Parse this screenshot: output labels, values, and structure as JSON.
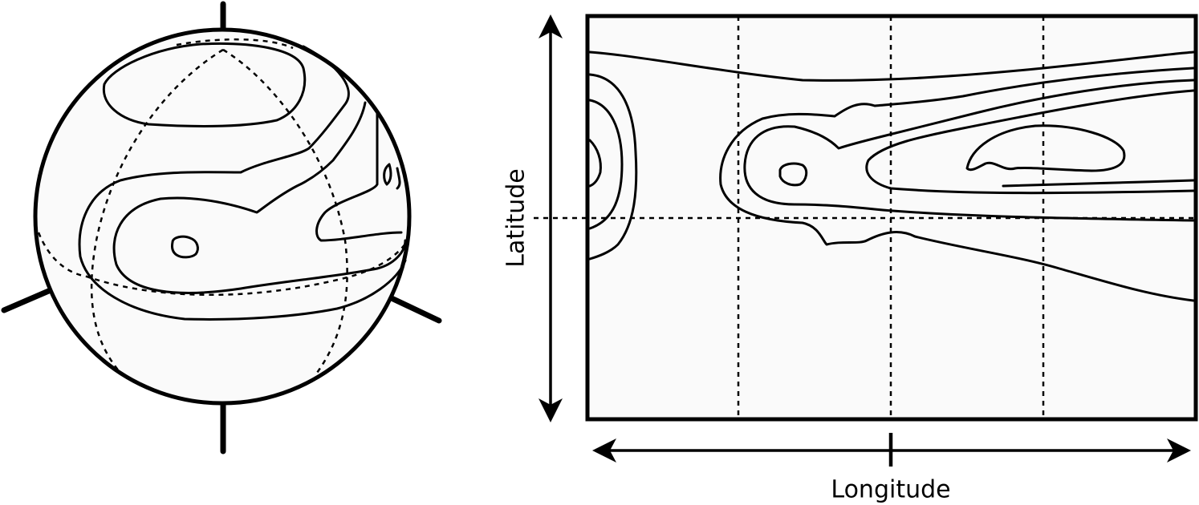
{
  "labels": {
    "latitude": "Latitude",
    "longitude": "Longitude"
  },
  "colors": {
    "stroke": "#000000",
    "fill": "#fafafa"
  },
  "icons": {
    "vertical_axis": "double-arrow-vertical-icon",
    "horizontal_axis": "double-arrow-horizontal-icon"
  }
}
